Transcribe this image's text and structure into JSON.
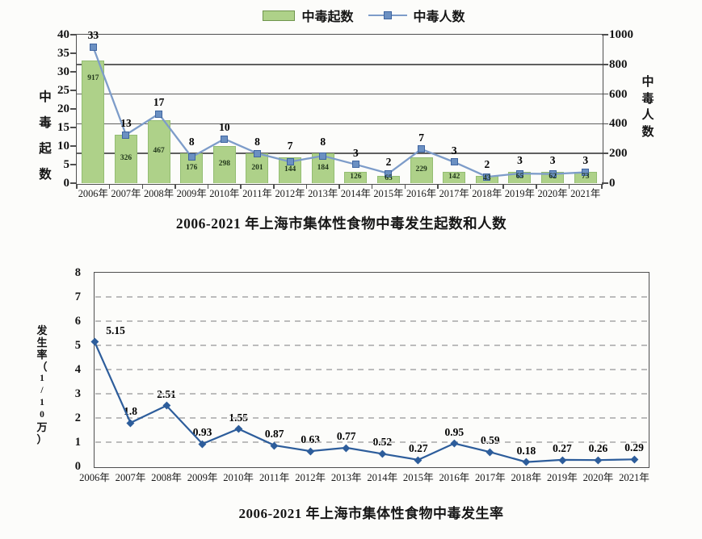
{
  "colors": {
    "bar_fill": "#aed189",
    "bar_border": "#93bd72",
    "bar_label_text": "#22381c",
    "top_line": "#7d9cc9",
    "top_marker_fill": "#6b90c2",
    "top_marker_border": "#3f65a0",
    "bottom_line": "#2d5d9b",
    "grid_solid": "#606060",
    "grid_dashed": "#bcbcbc",
    "frame": "#4f4f4f",
    "legend_swatch_border": "#70954e"
  },
  "chart_data": [
    {
      "type": "bar",
      "subtype": "bar+line combo, dual axis",
      "title": "2006-2021 年上海市集体性食物中毒发生起数和人数",
      "legend": [
        "中毒起数",
        "中毒人数"
      ],
      "legend_position": "top center",
      "categories": [
        "2006年",
        "2007年",
        "2008年",
        "2009年",
        "2010年",
        "2011年",
        "2012年",
        "2013年",
        "2014年",
        "2015年",
        "2016年",
        "2017年",
        "2018年",
        "2019年",
        "2020年",
        "2021年"
      ],
      "series": [
        {
          "name": "中毒起数",
          "type": "bar",
          "axis": "left",
          "values": [
            33,
            13,
            17,
            8,
            10,
            8,
            7,
            8,
            3,
            2,
            7,
            3,
            2,
            3,
            3,
            3
          ]
        },
        {
          "name": "中毒人数",
          "type": "line",
          "axis": "right",
          "values": [
            917,
            326,
            467,
            176,
            298,
            201,
            144,
            184,
            126,
            65,
            229,
            142,
            43,
            65,
            62,
            73
          ]
        }
      ],
      "left_axis": {
        "title": "中毒起数",
        "min": 0,
        "max": 40,
        "tick_labels": [
          "40",
          "35",
          "30",
          "25",
          "20",
          "15",
          "10",
          "5",
          "0"
        ]
      },
      "right_axis": {
        "title": "中毒人数",
        "min": 0,
        "max": 1000,
        "tick_labels": [
          "1000",
          "800",
          "600",
          "400",
          "200",
          "0"
        ]
      },
      "gridlines": {
        "orientation": "horizontal",
        "style": "solid",
        "at_right_axis_values": [
          800,
          600,
          400,
          200
        ]
      }
    },
    {
      "type": "line",
      "title": "2006-2021 年上海市集体性食物中毒发生率",
      "categories": [
        "2006年",
        "2007年",
        "2008年",
        "2009年",
        "2010年",
        "2011年",
        "2012年",
        "2013年",
        "2014年",
        "2015年",
        "2016年",
        "2017年",
        "2018年",
        "2019年",
        "2020年",
        "2021年"
      ],
      "series": [
        {
          "name": "发生率（1/10万）",
          "values": [
            5.15,
            1.8,
            2.51,
            0.93,
            1.55,
            0.87,
            0.63,
            0.77,
            0.52,
            0.27,
            0.95,
            0.59,
            0.18,
            0.27,
            0.26,
            0.29
          ]
        }
      ],
      "y_axis": {
        "title": "发生率（1/10万）",
        "min": 0,
        "max": 8,
        "tick_labels": [
          "8",
          "7",
          "6",
          "5",
          "4",
          "3",
          "2",
          "1",
          "0"
        ]
      },
      "gridlines": {
        "orientation": "horizontal",
        "style": "dashed",
        "at_values": [
          7,
          6,
          5,
          4,
          3,
          2,
          1
        ]
      },
      "legend_position": "none"
    }
  ]
}
